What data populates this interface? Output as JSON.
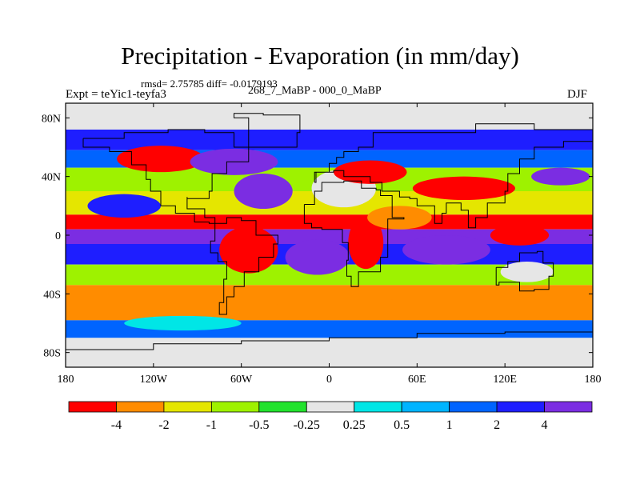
{
  "chart_data": {
    "type": "heatmap",
    "title": "Precipitation - Evaporation (in mm/day)",
    "subtitle": "rmsd= 2.75785 diff= -0.0179193",
    "left_string": "Expt = teYic1-teyfa3",
    "center_string": "268_7_MaBP - 000_0_MaBP",
    "right_string": "DJF",
    "x_ticks": [
      "180",
      "120W",
      "60W",
      "0",
      "60E",
      "120E",
      "180"
    ],
    "x_tick_values": [
      -180,
      -120,
      -60,
      0,
      60,
      120,
      180
    ],
    "y_ticks": [
      "80N",
      "40N",
      "0",
      "40S",
      "80S"
    ],
    "y_tick_values": [
      80,
      40,
      0,
      -40,
      -80
    ],
    "xlim": [
      -180,
      180
    ],
    "ylim": [
      -90,
      90
    ],
    "colorbar": {
      "colors": [
        "#ff0000",
        "#ff8c00",
        "#e5e600",
        "#9ef200",
        "#22e22d",
        "#e6e6e6",
        "#00e6e6",
        "#00b4ff",
        "#0064ff",
        "#1e1eff",
        "#7b2de2"
      ],
      "labels": [
        "-4",
        "-2",
        "-1",
        "-0.5",
        "-0.25",
        "0.25",
        "0.5",
        "1",
        "2",
        "4"
      ],
      "levels": [
        -4,
        -2,
        -1,
        -0.5,
        -0.25,
        0.25,
        0.5,
        1,
        2,
        4
      ]
    },
    "field_bands": [
      {
        "lat_max": 90,
        "lat_min": 72,
        "value": 0
      },
      {
        "lat_max": 72,
        "lat_min": 58,
        "value": 2.5
      },
      {
        "lat_max": 58,
        "lat_min": 46,
        "value": 1.5
      },
      {
        "lat_max": 46,
        "lat_min": 30,
        "value": -0.7
      },
      {
        "lat_max": 30,
        "lat_min": 14,
        "value": -1.5
      },
      {
        "lat_max": 14,
        "lat_min": 4,
        "value": -4.5
      },
      {
        "lat_max": 4,
        "lat_min": -6,
        "value": 5
      },
      {
        "lat_max": -6,
        "lat_min": -20,
        "value": 2.5
      },
      {
        "lat_max": -20,
        "lat_min": -34,
        "value": -0.7
      },
      {
        "lat_max": -34,
        "lat_min": -58,
        "value": -2.5
      },
      {
        "lat_max": -58,
        "lat_min": -70,
        "value": 1.5
      },
      {
        "lat_max": -70,
        "lat_min": -90,
        "value": 0
      }
    ],
    "field_patches": [
      {
        "lon": -115,
        "lat": 52,
        "rx": 30,
        "ry": 9,
        "value": -4.5
      },
      {
        "lon": -65,
        "lat": 50,
        "rx": 30,
        "ry": 9,
        "value": 5
      },
      {
        "lon": 10,
        "lat": 32,
        "rx": 22,
        "ry": 13,
        "value": 0
      },
      {
        "lon": 28,
        "lat": 43,
        "rx": 25,
        "ry": 8,
        "value": -4.5
      },
      {
        "lon": 92,
        "lat": 32,
        "rx": 35,
        "ry": 8,
        "value": -4.5
      },
      {
        "lon": 158,
        "lat": 40,
        "rx": 20,
        "ry": 6,
        "value": 5
      },
      {
        "lon": -45,
        "lat": 30,
        "rx": 20,
        "ry": 12,
        "value": 5
      },
      {
        "lon": -140,
        "lat": 20,
        "rx": 25,
        "ry": 8,
        "value": 2.5
      },
      {
        "lon": -55,
        "lat": -10,
        "rx": 20,
        "ry": 16,
        "value": -4.5
      },
      {
        "lon": 25,
        "lat": -5,
        "rx": 12,
        "ry": 18,
        "value": -4.5
      },
      {
        "lon": 48,
        "lat": 12,
        "rx": 22,
        "ry": 8,
        "value": -2.5
      },
      {
        "lon": 80,
        "lat": -10,
        "rx": 30,
        "ry": 10,
        "value": 5
      },
      {
        "lon": 130,
        "lat": 0,
        "rx": 20,
        "ry": 7,
        "value": -4.5
      },
      {
        "lon": 135,
        "lat": -25,
        "rx": 18,
        "ry": 7,
        "value": 0
      },
      {
        "lon": -8,
        "lat": -15,
        "rx": 22,
        "ry": 12,
        "value": 5
      },
      {
        "lon": 15,
        "lat": -50,
        "rx": 55,
        "ry": 7,
        "value": -2.5
      },
      {
        "lon": -100,
        "lat": -60,
        "rx": 40,
        "ry": 5,
        "value": 0.3
      }
    ]
  }
}
